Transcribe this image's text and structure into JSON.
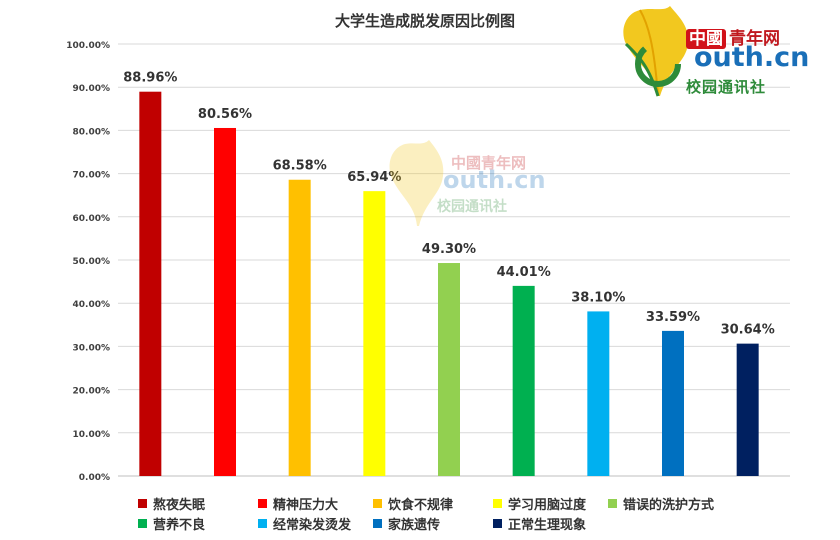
{
  "chart_data": {
    "type": "bar",
    "title": "大学生造成脱发原因比例图",
    "categories": [
      "熬夜失眠",
      "精神压力大",
      "饮食不规律",
      "学习用脑过度",
      "错误的洗护方式",
      "营养不良",
      "经常染发烫发",
      "家族遗传",
      "正常生理现象"
    ],
    "values": [
      88.96,
      80.56,
      68.58,
      65.94,
      49.3,
      44.01,
      38.1,
      33.59,
      30.64
    ],
    "data_labels": [
      "88.96%",
      "80.56%",
      "68.58%",
      "65.94%",
      "49.30%",
      "44.01%",
      "38.10%",
      "33.59%",
      "30.64%"
    ],
    "colors": [
      "#c00000",
      "#ff0000",
      "#ffc000",
      "#ffff00",
      "#92d050",
      "#00b050",
      "#00b0f0",
      "#0070c0",
      "#002060"
    ],
    "ylim": [
      0,
      100
    ],
    "y_ticks": [
      "0.00%",
      "10.00%",
      "20.00%",
      "30.00%",
      "40.00%",
      "50.00%",
      "60.00%",
      "70.00%",
      "80.00%",
      "90.00%",
      "100.00%"
    ],
    "grid": true,
    "legend_position": "bottom"
  },
  "logo": {
    "chinese_name": "青年网",
    "china_mark": "中國",
    "domain": "outh.cn",
    "subtitle": "校园通讯社"
  }
}
